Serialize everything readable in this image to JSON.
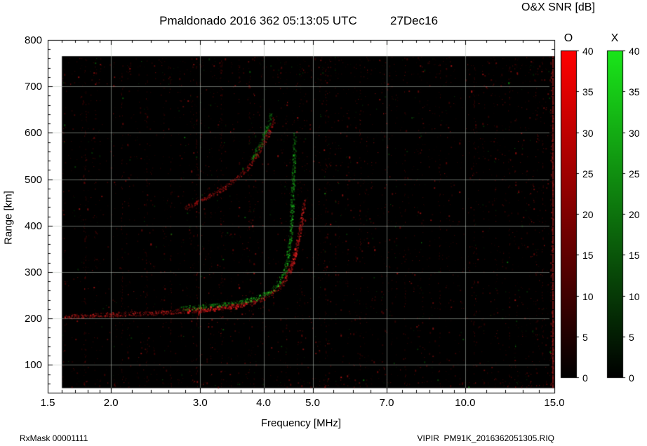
{
  "footer": {
    "rx_mask": "RxMask 00001111",
    "file": "VIPIR  PM91K_2016362051305.RIQ"
  },
  "chart_data": {
    "type": "heatmap",
    "title": "Pmaldonado 2016 362 05:13:05 UTC",
    "date_label": "27Dec16",
    "snr_label": "O&X SNR [dB]",
    "xlabel": "Frequency [MHz]",
    "ylabel": "Range [km]",
    "x_scale": "log",
    "xlim": [
      1.5,
      15.0
    ],
    "ylim": [
      40,
      800
    ],
    "x_ticks": [
      "1.5",
      "2.0",
      "3.0",
      "4.0",
      "5.0",
      "7.0",
      "10.0",
      "15.0"
    ],
    "x_tick_values": [
      1.5,
      2.0,
      3.0,
      4.0,
      5.0,
      7.0,
      10.0,
      15.0
    ],
    "x_minor_ticks": [
      1.6,
      1.7,
      1.8,
      1.9,
      2.2,
      2.4,
      2.6,
      2.8,
      3.2,
      3.4,
      3.6,
      3.8,
      4.2,
      4.4,
      4.6,
      4.8,
      5.5,
      6.0,
      6.5,
      7.5,
      8.0,
      8.5,
      9.0,
      9.5,
      11.0,
      12.0,
      13.0,
      14.0
    ],
    "y_ticks": [
      800,
      700,
      600,
      500,
      400,
      300,
      200,
      100
    ],
    "y_minor_step": 20,
    "grid": true,
    "background_color": "#000000",
    "grid_color": "#b9c3b9",
    "data_extent": {
      "f_min": 1.6,
      "f_max": 15.0,
      "r_min": 50,
      "r_max": 765
    },
    "colorbars": [
      {
        "label": "O",
        "mode_color": "#ff0000",
        "top_color": "#ff0000",
        "bottom_color": "#000000",
        "ticks": [
          40,
          35,
          30,
          25,
          20,
          15,
          10,
          5,
          0
        ]
      },
      {
        "label": "X",
        "mode_color": "#00dd00",
        "top_color": "#1ae61a",
        "bottom_color": "#000000",
        "ticks": [
          40,
          35,
          30,
          25,
          20,
          15,
          10,
          5,
          0
        ]
      }
    ],
    "traces": [
      {
        "name": "F-layer O-mode trace",
        "mode": "O",
        "points": [
          [
            1.62,
            205,
            0.55
          ],
          [
            1.8,
            207,
            0.6
          ],
          [
            2.1,
            210,
            0.55
          ],
          [
            2.4,
            212,
            0.6
          ],
          [
            2.7,
            216,
            0.8
          ],
          [
            3.0,
            220,
            1.0
          ],
          [
            3.3,
            224,
            1.0
          ],
          [
            3.6,
            230,
            0.9
          ],
          [
            3.85,
            238,
            0.85
          ],
          [
            4.05,
            248,
            0.85
          ],
          [
            4.2,
            260,
            0.8
          ],
          [
            4.35,
            276,
            0.8
          ],
          [
            4.45,
            296,
            0.85
          ],
          [
            4.55,
            322,
            0.9
          ],
          [
            4.65,
            356,
            0.85
          ],
          [
            4.72,
            396,
            0.8
          ],
          [
            4.78,
            432,
            0.7
          ],
          [
            4.82,
            455,
            0.55
          ]
        ]
      },
      {
        "name": "F-layer X-mode trace",
        "mode": "X",
        "points": [
          [
            2.75,
            222,
            0.35
          ],
          [
            3.0,
            226,
            0.5
          ],
          [
            3.3,
            230,
            0.65
          ],
          [
            3.6,
            236,
            0.75
          ],
          [
            3.85,
            244,
            0.8
          ],
          [
            4.05,
            254,
            0.8
          ],
          [
            4.2,
            266,
            0.8
          ],
          [
            4.3,
            281,
            0.8
          ],
          [
            4.4,
            302,
            0.85
          ],
          [
            4.45,
            326,
            0.8
          ],
          [
            4.5,
            362,
            0.8
          ],
          [
            4.53,
            402,
            0.8
          ],
          [
            4.55,
            452,
            0.75
          ],
          [
            4.57,
            506,
            0.65
          ],
          [
            4.59,
            556,
            0.6
          ],
          [
            4.61,
            598,
            0.45
          ]
        ]
      },
      {
        "name": "Upper O-mode trace",
        "mode": "O",
        "points": [
          [
            2.8,
            440,
            0.4
          ],
          [
            2.95,
            450,
            0.45
          ],
          [
            3.1,
            462,
            0.5
          ],
          [
            3.3,
            478,
            0.5
          ],
          [
            3.5,
            498,
            0.5
          ],
          [
            3.7,
            522,
            0.5
          ],
          [
            3.85,
            548,
            0.45
          ],
          [
            4.0,
            578,
            0.45
          ],
          [
            4.1,
            605,
            0.4
          ],
          [
            4.2,
            630,
            0.3
          ]
        ]
      },
      {
        "name": "Upper X-mode trace",
        "mode": "X",
        "points": [
          [
            3.8,
            545,
            0.35
          ],
          [
            3.95,
            580,
            0.4
          ],
          [
            4.05,
            612,
            0.4
          ],
          [
            4.15,
            645,
            0.3
          ]
        ]
      }
    ],
    "noise": {
      "red_density": 0.05,
      "green_fraction": 0.1,
      "rfi_columns": [
        1.78,
        2.1,
        2.35,
        2.62,
        2.95,
        3.3,
        3.75,
        5.3,
        6.2,
        7.6,
        8.9,
        10.4,
        12.2,
        14.2
      ],
      "edge_artifact_freq": 15.0
    }
  }
}
